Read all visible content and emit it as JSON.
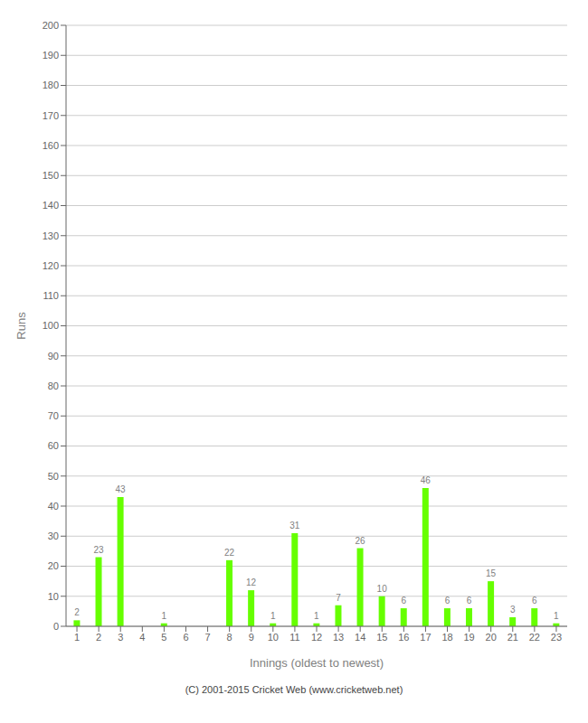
{
  "chart_data": {
    "type": "bar",
    "categories": [
      "1",
      "2",
      "3",
      "4",
      "5",
      "6",
      "7",
      "8",
      "9",
      "10",
      "11",
      "12",
      "13",
      "14",
      "15",
      "16",
      "17",
      "18",
      "19",
      "20",
      "21",
      "22",
      "23"
    ],
    "values": [
      2,
      23,
      43,
      0,
      1,
      0,
      0,
      22,
      12,
      1,
      31,
      1,
      7,
      26,
      10,
      6,
      46,
      6,
      6,
      15,
      3,
      6,
      1
    ],
    "color": "#66ff00",
    "xlabel": "Innings (oldest to newest)",
    "ylabel": "Runs",
    "ylim": [
      0,
      200
    ],
    "yticks": [
      0,
      10,
      20,
      30,
      40,
      50,
      60,
      70,
      80,
      90,
      100,
      110,
      120,
      130,
      140,
      150,
      160,
      170,
      180,
      190,
      200
    ],
    "grid": true,
    "data_labels": true,
    "annotations": [
      "(C) 2001-2015 Cricket Web (www.cricketweb.net)"
    ]
  }
}
